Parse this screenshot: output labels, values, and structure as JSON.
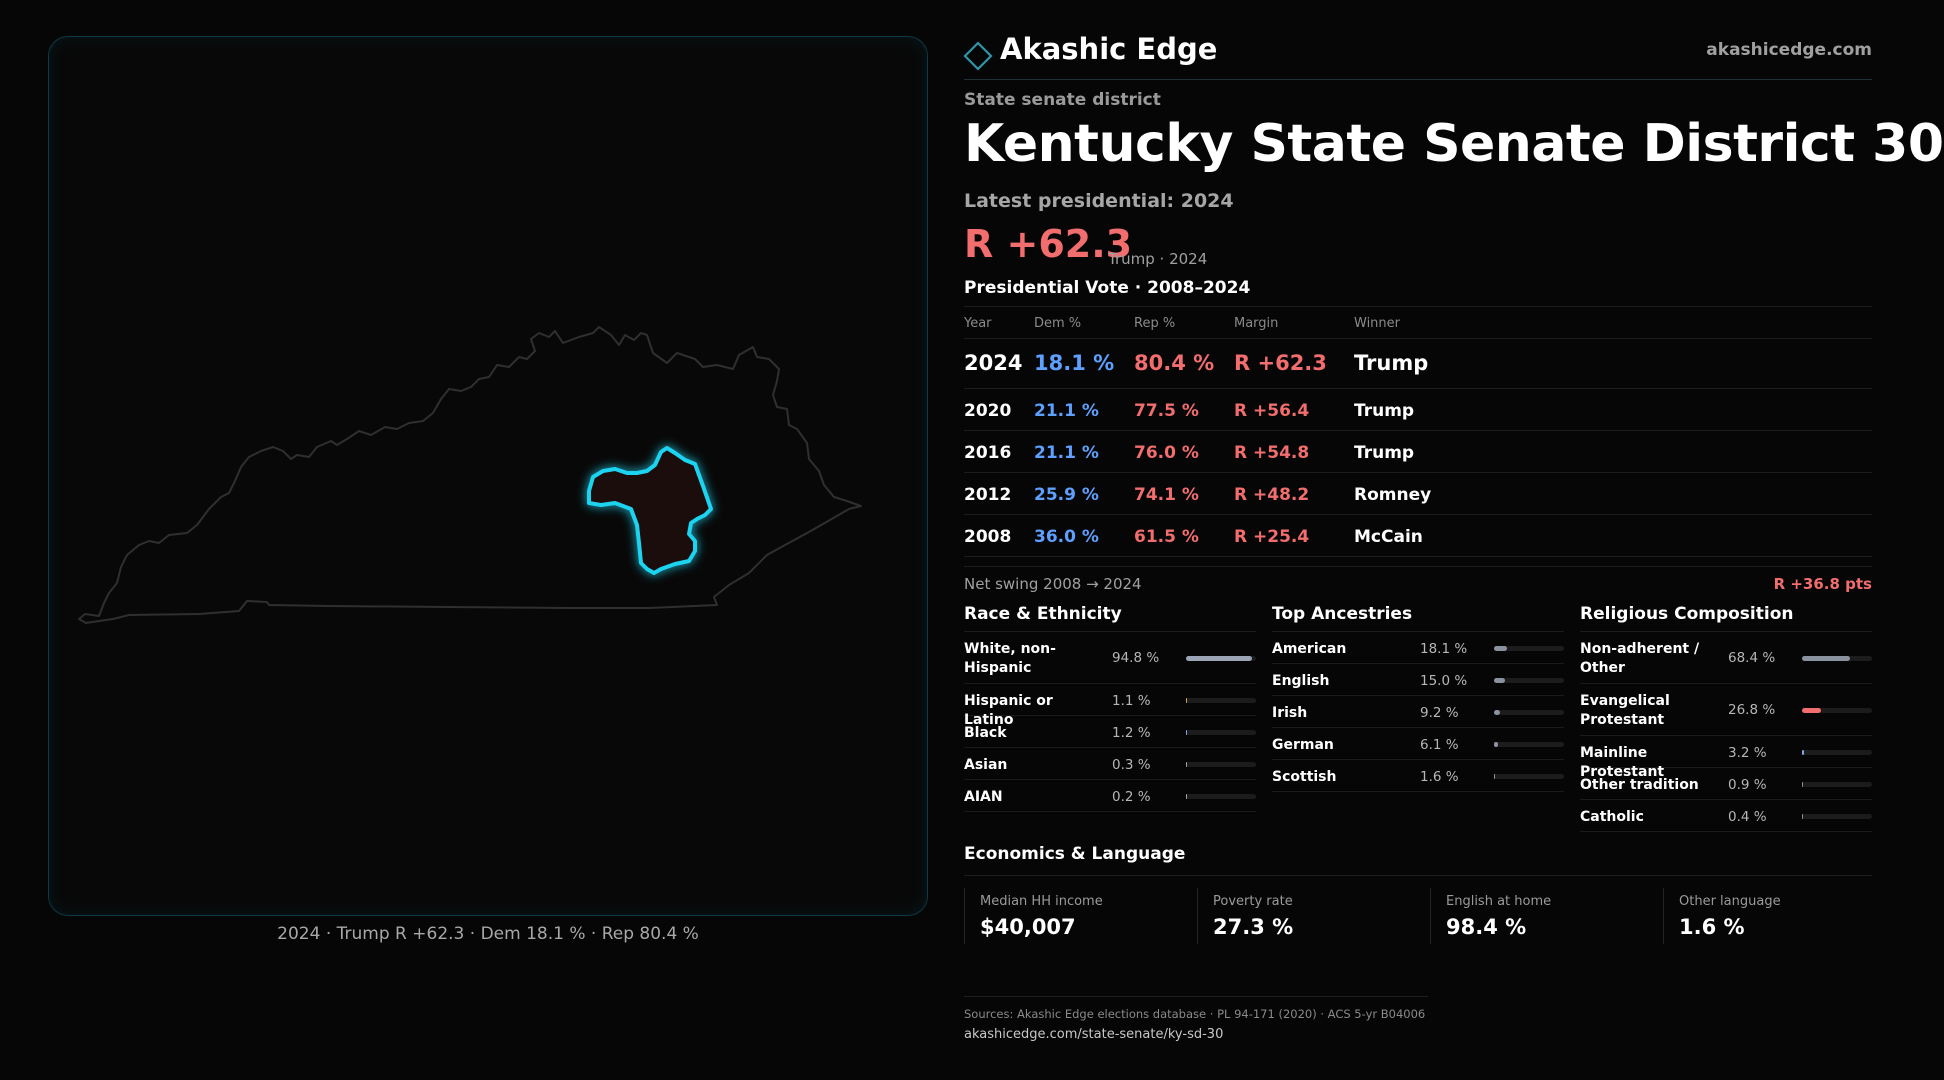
{
  "brand": {
    "name": "Akashic Edge",
    "url": "akashicedge.com"
  },
  "map": {
    "caption": "2024 · Trump R +62.3 · Dem 18.1 % · Rep 80.4 %",
    "state": "Kentucky",
    "highlight_color": "#1fd3f0",
    "district_fill": "#1e0c0c"
  },
  "header": {
    "kicker": "State senate district",
    "title": "Kentucky State Senate District 30",
    "latest_label": "Latest presidential: 2024",
    "big_margin": "R +62.3",
    "big_margin_note": "Trump · 2024"
  },
  "presidential": {
    "heading": "Presidential Vote · 2008–2024",
    "columns": [
      "Year",
      "Dem %",
      "Rep %",
      "Margin",
      "Winner"
    ],
    "rows": [
      {
        "year": "2024",
        "dem": "18.1 %",
        "rep": "80.4 %",
        "margin": "R +62.3",
        "winner": "Trump"
      },
      {
        "year": "2020",
        "dem": "21.1 %",
        "rep": "77.5 %",
        "margin": "R +56.4",
        "winner": "Trump"
      },
      {
        "year": "2016",
        "dem": "21.1 %",
        "rep": "76.0 %",
        "margin": "R +54.8",
        "winner": "Trump"
      },
      {
        "year": "2012",
        "dem": "25.9 %",
        "rep": "74.1 %",
        "margin": "R +48.2",
        "winner": "Romney"
      },
      {
        "year": "2008",
        "dem": "36.0 %",
        "rep": "61.5 %",
        "margin": "R +25.4",
        "winner": "McCain"
      }
    ],
    "swing_label": "Net swing 2008 → 2024",
    "swing_value": "R +36.8 pts"
  },
  "race": {
    "heading": "Race & Ethnicity",
    "rows": [
      {
        "label": "White, non-Hispanic",
        "value": "94.8 %",
        "pct": 94.8,
        "color": "#9aa4b4",
        "tall": true
      },
      {
        "label": "Hispanic or Latino",
        "value": "1.1 %",
        "pct": 1.1,
        "color": "#d4a24a",
        "tall": false
      },
      {
        "label": "Black",
        "value": "1.2 %",
        "pct": 1.2,
        "color": "#7fa8e0",
        "tall": false
      },
      {
        "label": "Asian",
        "value": "0.3 %",
        "pct": 0.3,
        "color": "#9aa4b4",
        "tall": false
      },
      {
        "label": "AIAN",
        "value": "0.2 %",
        "pct": 0.2,
        "color": "#9aa4b4",
        "tall": false
      }
    ]
  },
  "ancestry": {
    "heading": "Top Ancestries",
    "rows": [
      {
        "label": "American",
        "value": "18.1 %",
        "pct": 18.1,
        "color": "#8a92a0",
        "tall": false
      },
      {
        "label": "English",
        "value": "15.0 %",
        "pct": 15.0,
        "color": "#8a92a0",
        "tall": false
      },
      {
        "label": "Irish",
        "value": "9.2 %",
        "pct": 9.2,
        "color": "#8a92a0",
        "tall": false
      },
      {
        "label": "German",
        "value": "6.1 %",
        "pct": 6.1,
        "color": "#8a92a0",
        "tall": false
      },
      {
        "label": "Scottish",
        "value": "1.6 %",
        "pct": 1.6,
        "color": "#8a92a0",
        "tall": false
      }
    ]
  },
  "religion": {
    "heading": "Religious Composition",
    "rows": [
      {
        "label": "Non-adherent / Other",
        "value": "68.4 %",
        "pct": 68.4,
        "color": "#8a92a0",
        "tall": true
      },
      {
        "label": "Evangelical Protestant",
        "value": "26.8 %",
        "pct": 26.8,
        "color": "#f26d6d",
        "tall": true
      },
      {
        "label": "Mainline Protestant",
        "value": "3.2 %",
        "pct": 3.2,
        "color": "#7fa8e0",
        "tall": false
      },
      {
        "label": "Other tradition",
        "value": "0.9 %",
        "pct": 0.9,
        "color": "#8a92a0",
        "tall": false
      },
      {
        "label": "Catholic",
        "value": "0.4 %",
        "pct": 0.4,
        "color": "#8a92a0",
        "tall": false
      }
    ]
  },
  "economics": {
    "heading": "Economics & Language",
    "cards": [
      {
        "label": "Median HH income",
        "value": "$40,007"
      },
      {
        "label": "Poverty rate",
        "value": "27.3 %"
      },
      {
        "label": "English at home",
        "value": "98.4 %"
      },
      {
        "label": "Other language",
        "value": "1.6 %"
      }
    ]
  },
  "sources": {
    "line": "Sources: Akashic Edge elections database · PL 94-171 (2020) · ACS 5-yr B04006",
    "url": "akashicedge.com/state-senate/ky-sd-30"
  },
  "colors": {
    "dem": "#5ea0ff",
    "rep": "#f26d6d",
    "accent": "#1fd3f0"
  }
}
